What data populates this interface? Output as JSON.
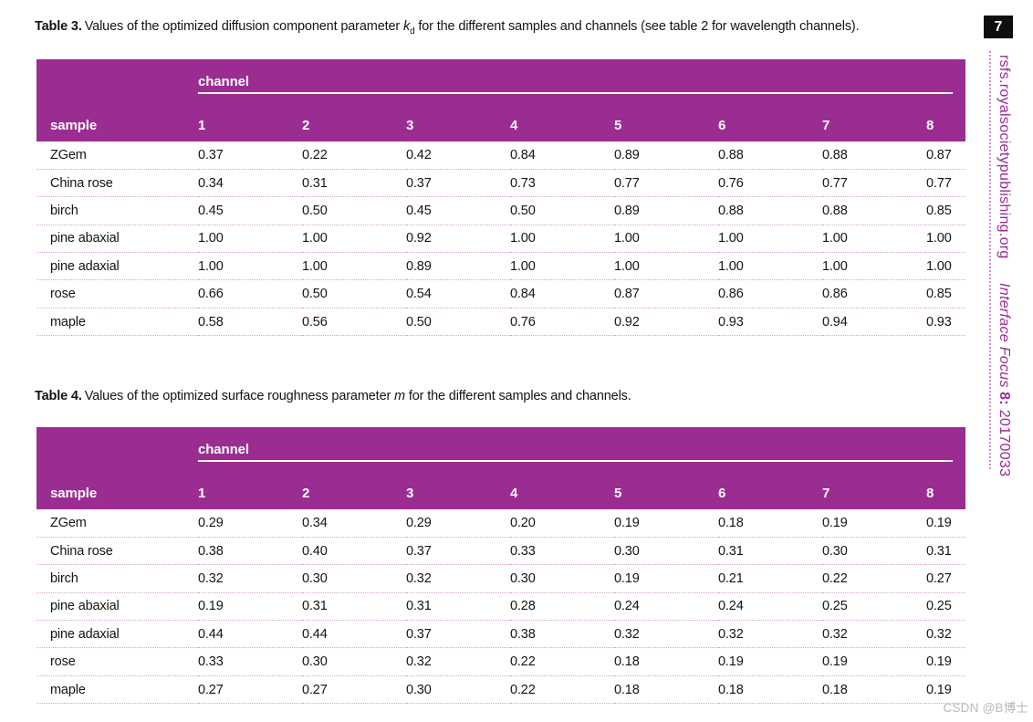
{
  "page": {
    "page_number": "7",
    "sidebar": {
      "journal_url": "rsfs.royalsocietypublishing.org",
      "journal_name": "Interface Focus",
      "volume": " 8:",
      "article_id": " 20170033"
    },
    "watermark": "CSDN @B博士"
  },
  "colors": {
    "header_background": "#9b2c91",
    "header_text": "#ffffff",
    "row_divider_dotted": "#d9a2d2",
    "sidebar_accent": "#9b2c91",
    "badge_background": "#0e0e0e",
    "body_text": "#141414",
    "watermark_gray": "#b9b9b9"
  },
  "table3": {
    "caption_label": "Table 3.",
    "caption_before": "Values of the optimized diffusion component parameter ",
    "param_symbol": "k",
    "param_sub": "d",
    "caption_after": " for the different samples and channels (see table 2 for wavelength channels).",
    "header": {
      "sample": "sample",
      "channel_group": "channel",
      "channels": [
        "1",
        "2",
        "3",
        "4",
        "5",
        "6",
        "7",
        "8"
      ]
    },
    "rows": [
      {
        "sample": "ZGem",
        "values": [
          "0.37",
          "0.22",
          "0.42",
          "0.84",
          "0.89",
          "0.88",
          "0.88",
          "0.87"
        ]
      },
      {
        "sample": "China rose",
        "values": [
          "0.34",
          "0.31",
          "0.37",
          "0.73",
          "0.77",
          "0.76",
          "0.77",
          "0.77"
        ]
      },
      {
        "sample": "birch",
        "values": [
          "0.45",
          "0.50",
          "0.45",
          "0.50",
          "0.89",
          "0.88",
          "0.88",
          "0.85"
        ]
      },
      {
        "sample": "pine abaxial",
        "values": [
          "1.00",
          "1.00",
          "0.92",
          "1.00",
          "1.00",
          "1.00",
          "1.00",
          "1.00"
        ]
      },
      {
        "sample": "pine adaxial",
        "values": [
          "1.00",
          "1.00",
          "0.89",
          "1.00",
          "1.00",
          "1.00",
          "1.00",
          "1.00"
        ]
      },
      {
        "sample": "rose",
        "values": [
          "0.66",
          "0.50",
          "0.54",
          "0.84",
          "0.87",
          "0.86",
          "0.86",
          "0.85"
        ]
      },
      {
        "sample": "maple",
        "values": [
          "0.58",
          "0.56",
          "0.50",
          "0.76",
          "0.92",
          "0.93",
          "0.94",
          "0.93"
        ]
      }
    ]
  },
  "table4": {
    "caption_label": "Table 4.",
    "caption_before": "Values of the optimized surface roughness parameter ",
    "param_symbol": "m",
    "param_sub": "",
    "caption_after": " for the different samples and channels.",
    "header": {
      "sample": "sample",
      "channel_group": "channel",
      "channels": [
        "1",
        "2",
        "3",
        "4",
        "5",
        "6",
        "7",
        "8"
      ]
    },
    "rows": [
      {
        "sample": "ZGem",
        "values": [
          "0.29",
          "0.34",
          "0.29",
          "0.20",
          "0.19",
          "0.18",
          "0.19",
          "0.19"
        ]
      },
      {
        "sample": "China rose",
        "values": [
          "0.38",
          "0.40",
          "0.37",
          "0.33",
          "0.30",
          "0.31",
          "0.30",
          "0.31"
        ]
      },
      {
        "sample": "birch",
        "values": [
          "0.32",
          "0.30",
          "0.32",
          "0.30",
          "0.19",
          "0.21",
          "0.22",
          "0.27"
        ]
      },
      {
        "sample": "pine abaxial",
        "values": [
          "0.19",
          "0.31",
          "0.31",
          "0.28",
          "0.24",
          "0.24",
          "0.25",
          "0.25"
        ]
      },
      {
        "sample": "pine adaxial",
        "values": [
          "0.44",
          "0.44",
          "0.37",
          "0.38",
          "0.32",
          "0.32",
          "0.32",
          "0.32"
        ]
      },
      {
        "sample": "rose",
        "values": [
          "0.33",
          "0.30",
          "0.32",
          "0.22",
          "0.18",
          "0.19",
          "0.19",
          "0.19"
        ]
      },
      {
        "sample": "maple",
        "values": [
          "0.27",
          "0.27",
          "0.30",
          "0.22",
          "0.18",
          "0.18",
          "0.18",
          "0.19"
        ]
      }
    ]
  }
}
